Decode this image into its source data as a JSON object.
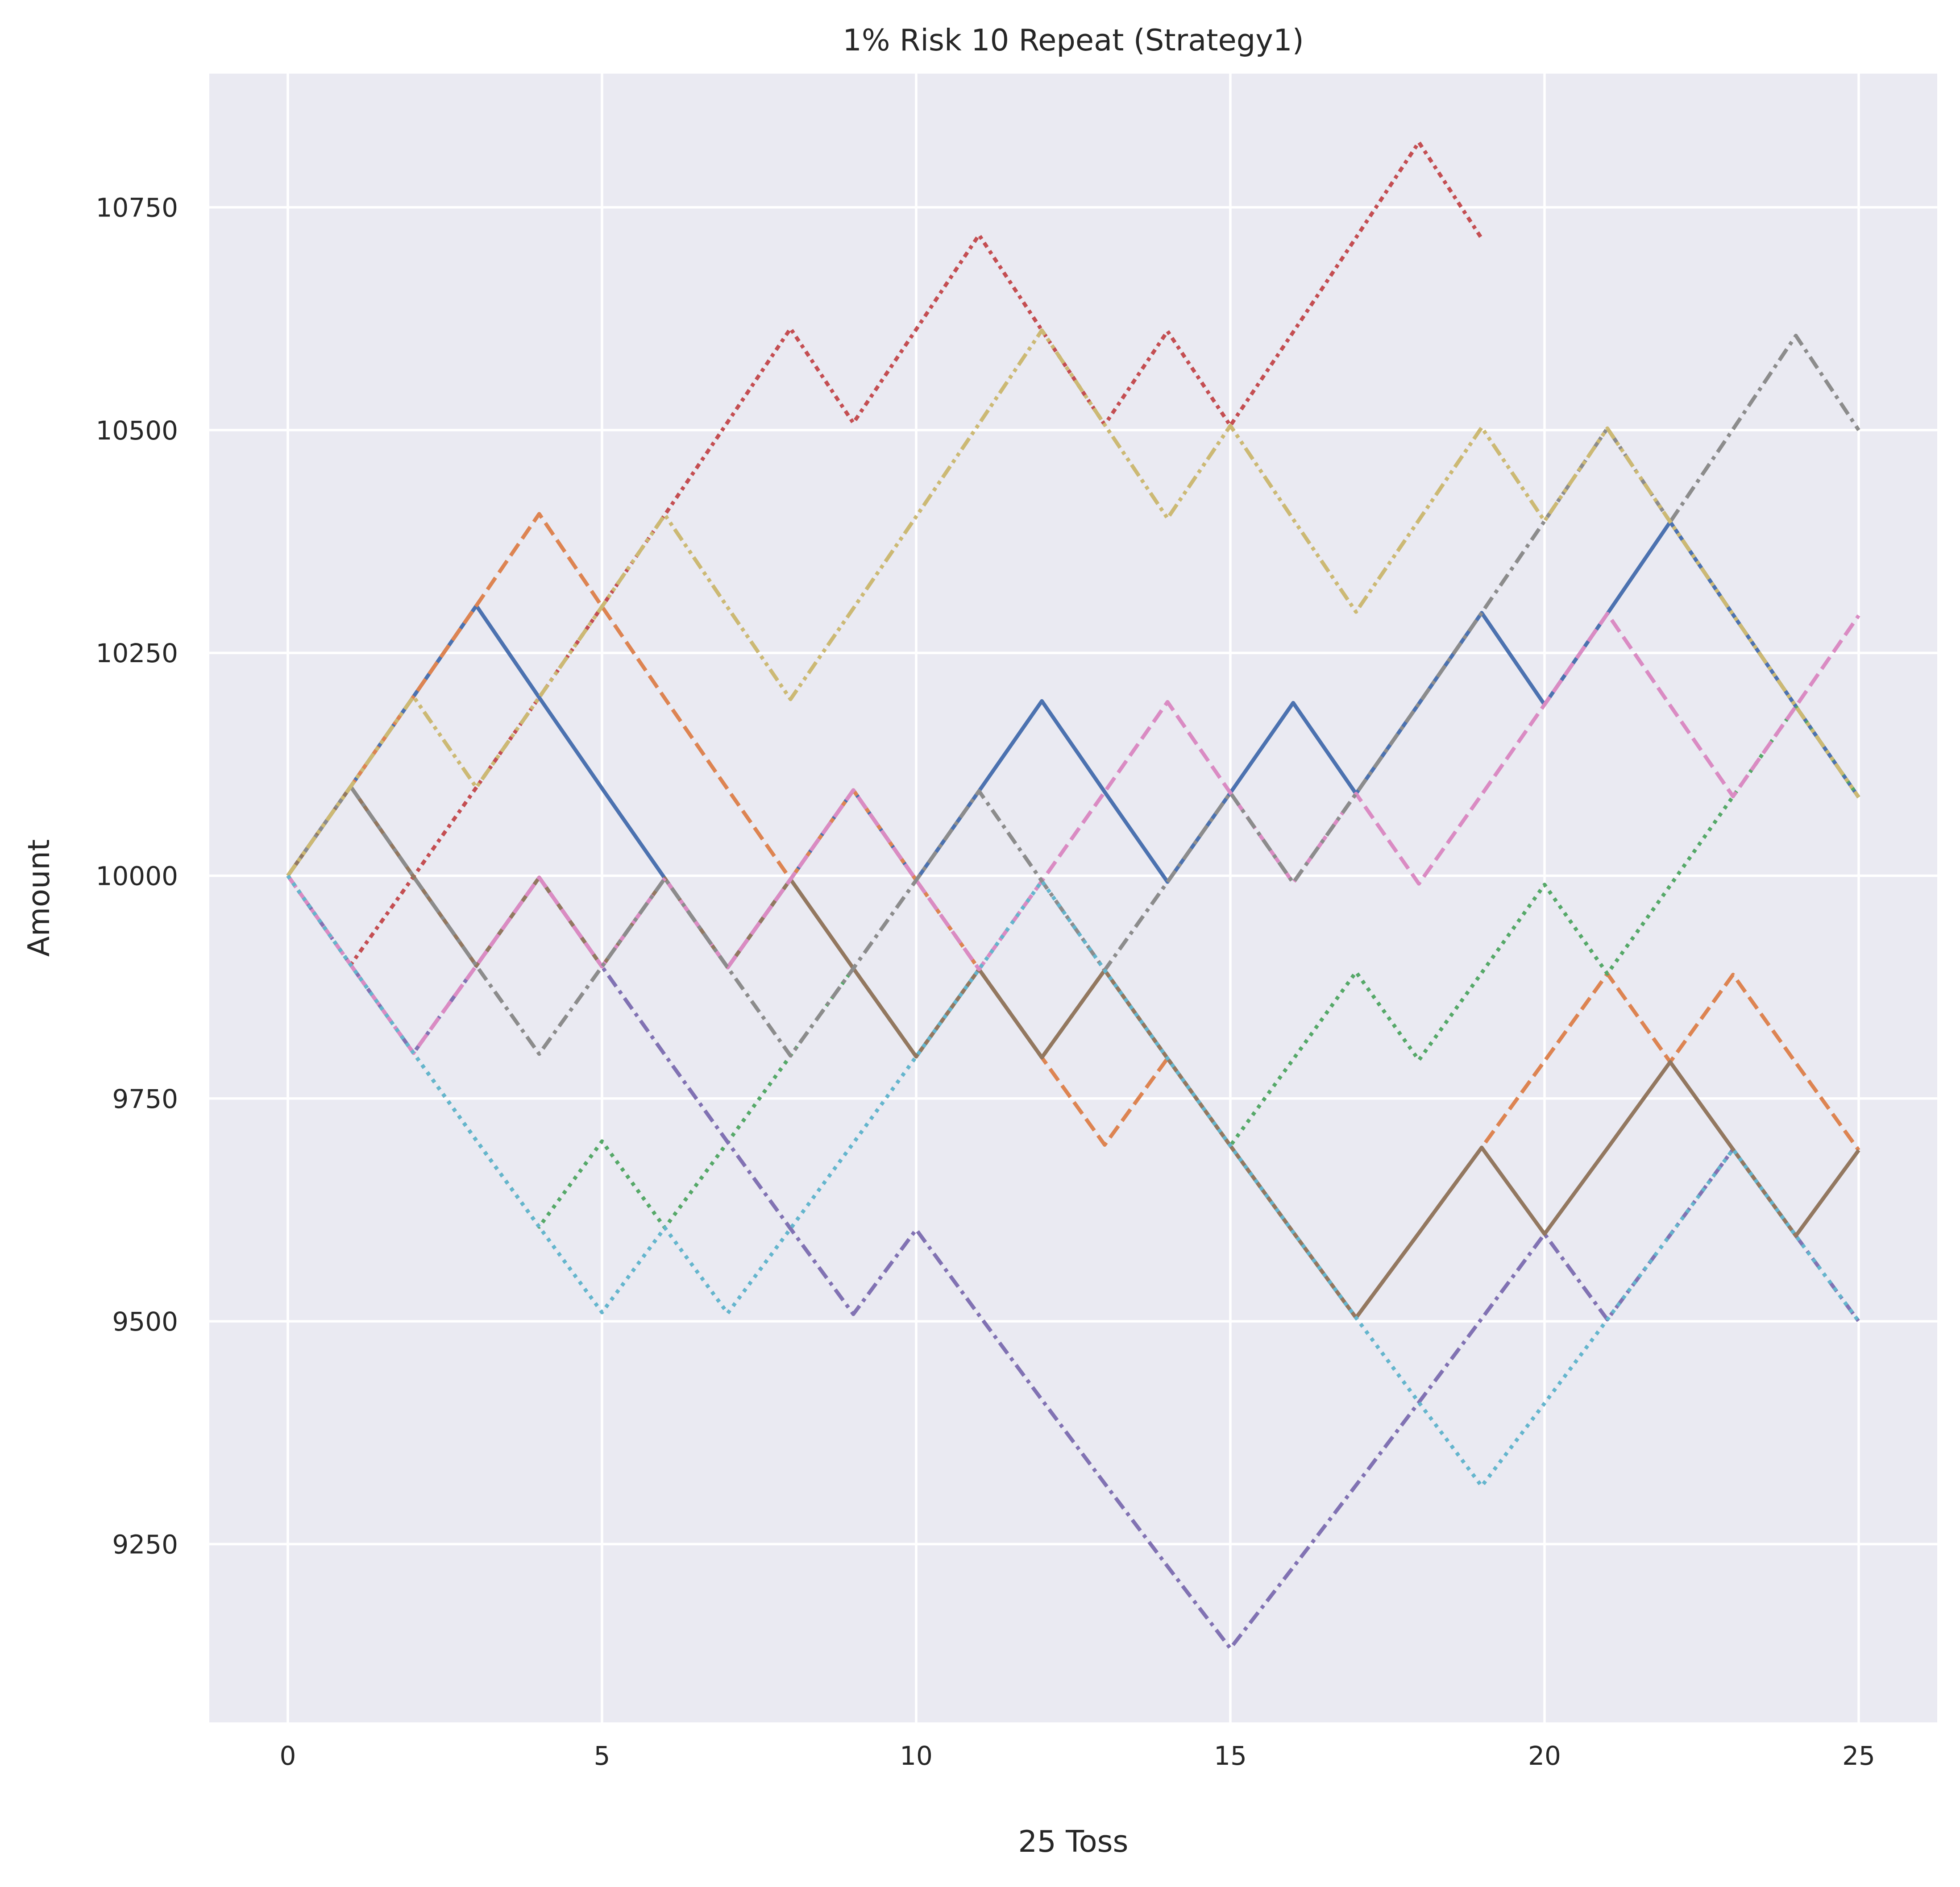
{
  "chart_data": {
    "type": "line",
    "title": "1% Risk 10 Repeat (Strategy1)",
    "xlabel": "25 Toss",
    "ylabel": "Amount",
    "xlim": [
      -1.25,
      26.25
    ],
    "ylim": [
      9050,
      10900
    ],
    "xticks": [
      0,
      5,
      10,
      15,
      20,
      25
    ],
    "yticks": [
      9250,
      9500,
      9750,
      10000,
      10250,
      10500,
      10750
    ],
    "grid": true,
    "legend": "none",
    "background": "#eaeaf2",
    "series": [
      {
        "color": "#4c72b0",
        "dash": "solid",
        "values": [
          10000,
          10100,
          10201,
          10303,
          10200,
          10098,
          9997,
          9897,
          9996,
          10096,
          9995,
          10095,
          10196,
          10094,
          9993,
          10093,
          10194,
          10092,
          10193,
          10295,
          10192,
          10294,
          10397,
          10293,
          10190,
          10088
        ]
      },
      {
        "color": "#dd8452",
        "dash": "dashed",
        "values": [
          10000,
          10100,
          10201,
          10303,
          10406,
          10302,
          10199,
          10097,
          9996,
          10096,
          9995,
          9895,
          9796,
          9698,
          9795,
          9697,
          9600,
          9504,
          9599,
          9695,
          9792,
          9890,
          9791,
          9889,
          9790,
          9692
        ]
      },
      {
        "color": "#55a868",
        "dash": "dotted",
        "values": [
          10000,
          9900,
          9801,
          9703,
          9606,
          9702,
          9605,
          9701,
          9798,
          9896,
          9797,
          9895,
          9796,
          9894,
          9795,
          9697,
          9794,
          9892,
          9793,
          9891,
          9990,
          9890,
          9989,
          10089,
          10190,
          10088
        ]
      },
      {
        "color": "#c44e52",
        "dash": "dashed-dot-tight",
        "values": [
          10000,
          9900,
          9999,
          10099,
          10200,
          10302,
          10405,
          10509,
          10614,
          10508,
          10613,
          10719,
          10612,
          10506,
          10611,
          10505,
          10610,
          10716,
          10823,
          10715
        ]
      },
      {
        "color": "#8172b3",
        "dash": "dashdot",
        "values": [
          10000,
          9900,
          9801,
          9899,
          9998,
          9898,
          9799,
          9701,
          9604,
          9508,
          9603,
          9507,
          9412,
          9318,
          9225,
          9133,
          9224,
          9316,
          9409,
          9503,
          9598,
          9502,
          9597,
          9693,
          9596,
          9500
        ]
      },
      {
        "color": "#937860",
        "dash": "solid",
        "values": [
          10000,
          10100,
          9999,
          9899,
          9998,
          9898,
          9997,
          9897,
          9996,
          9896,
          9797,
          9895,
          9796,
          9894,
          9795,
          9697,
          9600,
          9504,
          9599,
          9695,
          9598,
          9694,
          9791,
          9693,
          9596,
          9692
        ]
      },
      {
        "color": "#da8bc3",
        "dash": "dashed",
        "values": [
          10000,
          9900,
          9801,
          9899,
          9998,
          9898,
          9997,
          9897,
          9996,
          10096,
          9995,
          9895,
          9994,
          10094,
          10195,
          10093,
          9992,
          10092,
          9991,
          10091,
          10192,
          10294,
          10191,
          10089,
          10190,
          10292
        ]
      },
      {
        "color": "#8c8c8c",
        "dash": "dashdot",
        "values": [
          10000,
          10100,
          9999,
          9899,
          9800,
          9898,
          9997,
          9897,
          9798,
          9896,
          9995,
          10095,
          9994,
          9894,
          9993,
          10093,
          9992,
          10092,
          10193,
          10295,
          10398,
          10502,
          10397,
          10501,
          10606,
          10500
        ]
      },
      {
        "color": "#ccb974",
        "dash": "dashdot-dotted",
        "values": [
          10000,
          10100,
          10201,
          10099,
          10200,
          10302,
          10405,
          10301,
          10198,
          10300,
          10403,
          10507,
          10612,
          10506,
          10401,
          10505,
          10400,
          10296,
          10399,
          10503,
          10398,
          10502,
          10397,
          10293,
          10190,
          10088
        ]
      },
      {
        "color": "#64b5cd",
        "dash": "dotted",
        "values": [
          10000,
          9900,
          9801,
          9703,
          9606,
          9510,
          9605,
          9509,
          9604,
          9700,
          9797,
          9895,
          9994,
          9894,
          9795,
          9697,
          9600,
          9504,
          9409,
          9315,
          9408,
          9502,
          9597,
          9693,
          9596,
          9500
        ]
      }
    ]
  }
}
